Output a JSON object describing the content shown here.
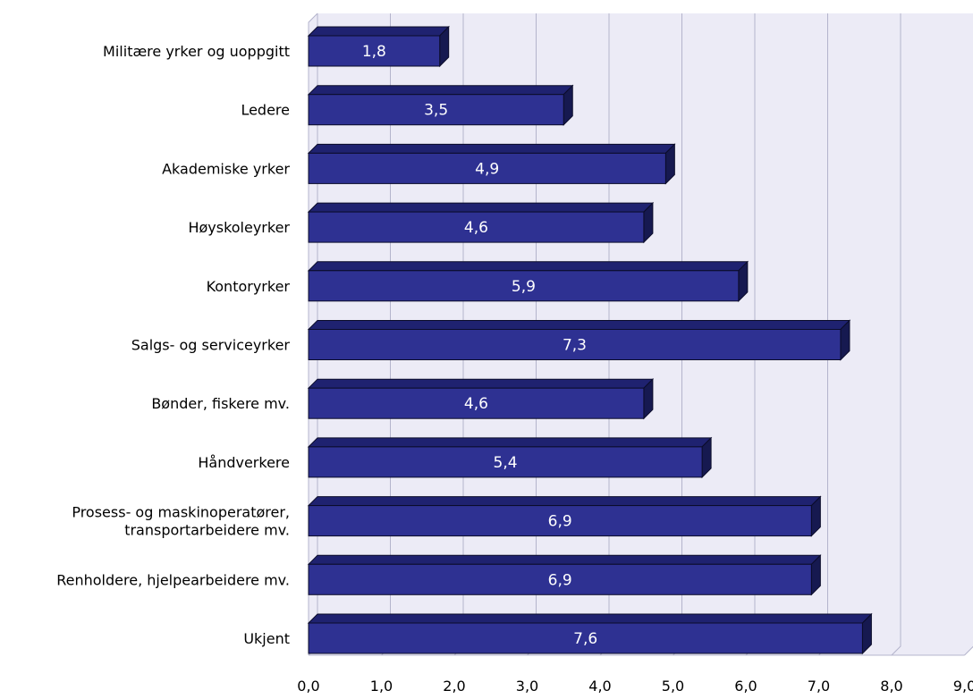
{
  "chart_data": {
    "type": "bar",
    "orientation": "horizontal",
    "style": "3d",
    "categories": [
      "Militære yrker og uoppgitt",
      "Ledere",
      "Akademiske yrker",
      "Høyskoleyrker",
      "Kontoryrker",
      "Salgs- og serviceyrker",
      "Bønder, fiskere mv.",
      "Håndverkere",
      "Prosess- og maskinoperatører, transportarbeidere mv.",
      "Renholdere, hjelpearbeidere mv.",
      "Ukjent"
    ],
    "category_lines": [
      [
        "Militære yrker og uoppgitt"
      ],
      [
        "Ledere"
      ],
      [
        "Akademiske yrker"
      ],
      [
        "Høyskoleyrker"
      ],
      [
        "Kontoryrker"
      ],
      [
        "Salgs- og serviceyrker"
      ],
      [
        "Bønder, fiskere mv."
      ],
      [
        "Håndverkere"
      ],
      [
        "Prosess- og maskinoperatører,",
        "transportarbeidere mv."
      ],
      [
        "Renholdere, hjelpearbeidere mv."
      ],
      [
        "Ukjent"
      ]
    ],
    "values": [
      1.8,
      3.5,
      4.9,
      4.6,
      5.9,
      7.3,
      4.6,
      5.4,
      6.9,
      6.9,
      7.6
    ],
    "value_labels": [
      "1,8",
      "3,5",
      "4,9",
      "4,6",
      "5,9",
      "7,3",
      "4,6",
      "5,4",
      "6,9",
      "6,9",
      "7,6"
    ],
    "xlim": [
      0,
      9
    ],
    "x_ticks": [
      0,
      1,
      2,
      3,
      4,
      5,
      6,
      7,
      8,
      9
    ],
    "x_tick_labels": [
      "0,0",
      "1,0",
      "2,0",
      "3,0",
      "4,0",
      "5,0",
      "6,0",
      "7,0",
      "8,0",
      "9,0"
    ],
    "grid": true,
    "legend": "none",
    "title": "",
    "xlabel": "",
    "ylabel": "",
    "colors": {
      "bar_front": "#2e3192",
      "bar_top": "#1f2270",
      "bar_side": "#161950",
      "bar_outline": "#0b0c2a",
      "plot_background": "#ecebf6",
      "grid_line": "#b4b4cc"
    }
  }
}
